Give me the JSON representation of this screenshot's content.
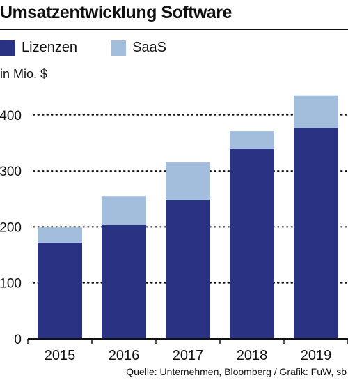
{
  "chart_data": {
    "type": "bar",
    "stacked": true,
    "title": "Umsatzentwicklung Software",
    "ylabel": "in Mio. $",
    "categories": [
      "2015",
      "2016",
      "2017",
      "2018",
      "2019"
    ],
    "series": [
      {
        "name": "Lizenzen",
        "values": [
          172,
          204,
          248,
          340,
          377
        ]
      },
      {
        "name": "SaaS",
        "values": [
          27,
          51,
          67,
          31,
          58
        ]
      }
    ],
    "ylim": [
      0,
      440
    ],
    "yticks": [
      0,
      100,
      200,
      300,
      400
    ],
    "grid": "horizontal-dotted",
    "legend_position": "top-left",
    "source": "Quelle: Unternehmen, Bloomberg / Grafik: FuW, sb"
  },
  "colors": {
    "lizenzen": "#2a3284",
    "saas": "#a3bedc",
    "axis": "#111111",
    "grid": "#111111"
  }
}
